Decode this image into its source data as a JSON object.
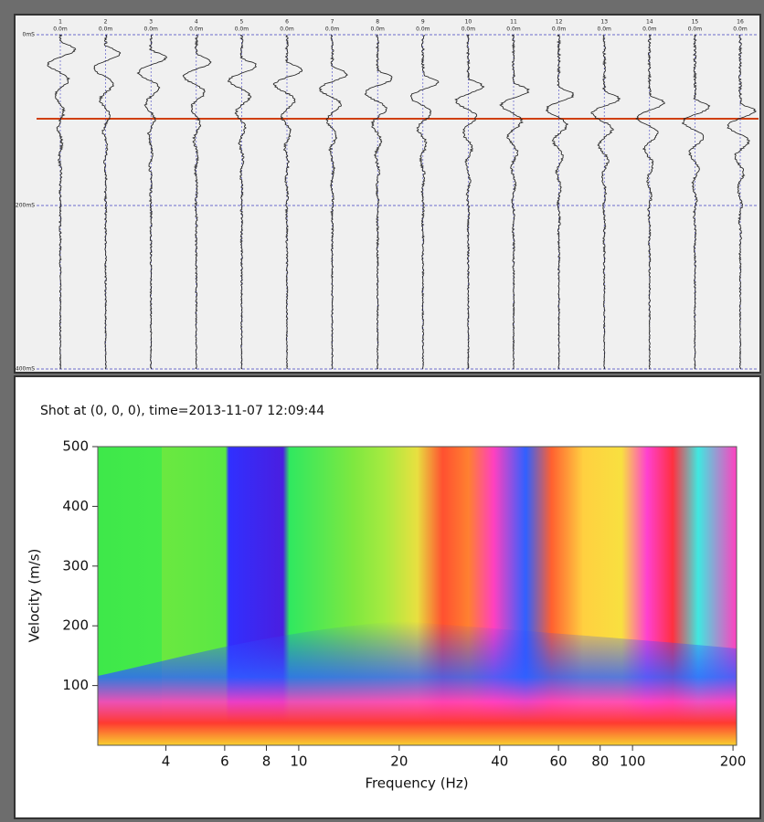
{
  "traces": {
    "numbers": [
      "1",
      "2",
      "3",
      "4",
      "5",
      "6",
      "7",
      "8",
      "9",
      "10",
      "11",
      "12",
      "13",
      "14",
      "15",
      "16"
    ],
    "offsets": [
      "0.0m",
      "0.0m",
      "0.0m",
      "0.0m",
      "0.0m",
      "0.0m",
      "0.0m",
      "0.0m",
      "0.0m",
      "0.0m",
      "0.0m",
      "0.0m",
      "0.0m",
      "0.0m",
      "0.0m",
      "0.0m"
    ],
    "time_labels": [
      "0mS",
      "200mS",
      "400mS"
    ]
  },
  "chart_data": {
    "type": "heatmap",
    "title": "Shot at (0, 0, 0), time=2013-11-07 12:09:44",
    "x_label": "Frequency (Hz)",
    "y_label": "Velocity (m/s)",
    "xlim": [
      2.5,
      205
    ],
    "xscale": "log",
    "xticks": [
      4,
      6,
      8,
      10,
      20,
      40,
      60,
      80,
      100,
      200
    ],
    "ylim": [
      0,
      500
    ],
    "yticks": [
      100,
      200,
      300,
      400,
      500
    ]
  }
}
